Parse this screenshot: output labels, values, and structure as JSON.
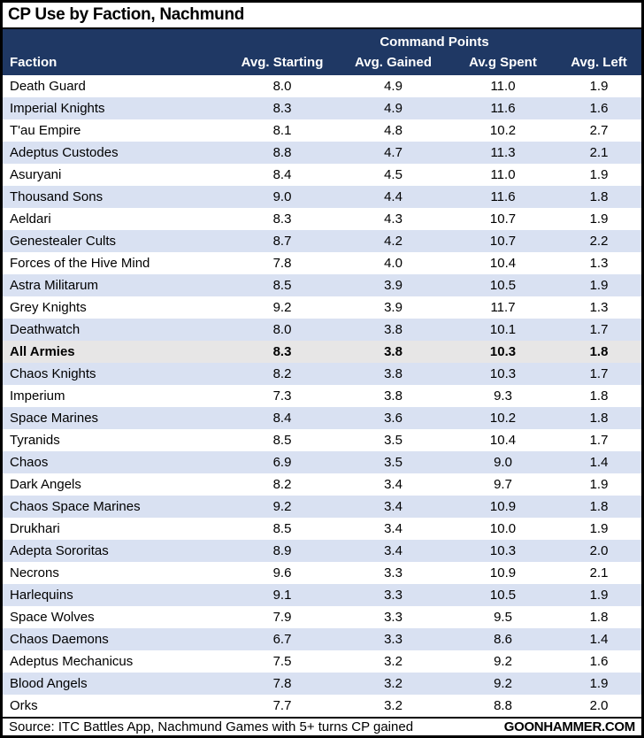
{
  "title": "CP Use by Faction, Nachmund",
  "chart_data": {
    "type": "table",
    "title": "CP Use by Faction, Nachmund",
    "group_header": "Command Points",
    "columns": [
      "Faction",
      "Avg. Starting",
      "Avg. Gained",
      "Av.g Spent",
      "Avg. Left"
    ],
    "rows": [
      {
        "faction": "Death Guard",
        "values": [
          "8.0",
          "4.9",
          "11.0",
          "1.9"
        ]
      },
      {
        "faction": "Imperial Knights",
        "values": [
          "8.3",
          "4.9",
          "11.6",
          "1.6"
        ]
      },
      {
        "faction": "T'au Empire",
        "values": [
          "8.1",
          "4.8",
          "10.2",
          "2.7"
        ]
      },
      {
        "faction": "Adeptus Custodes",
        "values": [
          "8.8",
          "4.7",
          "11.3",
          "2.1"
        ]
      },
      {
        "faction": "Asuryani",
        "values": [
          "8.4",
          "4.5",
          "11.0",
          "1.9"
        ]
      },
      {
        "faction": "Thousand Sons",
        "values": [
          "9.0",
          "4.4",
          "11.6",
          "1.8"
        ]
      },
      {
        "faction": "Aeldari",
        "values": [
          "8.3",
          "4.3",
          "10.7",
          "1.9"
        ]
      },
      {
        "faction": "Genestealer Cults",
        "values": [
          "8.7",
          "4.2",
          "10.7",
          "2.2"
        ]
      },
      {
        "faction": "Forces of the Hive Mind",
        "values": [
          "7.8",
          "4.0",
          "10.4",
          "1.3"
        ]
      },
      {
        "faction": "Astra Militarum",
        "values": [
          "8.5",
          "3.9",
          "10.5",
          "1.9"
        ]
      },
      {
        "faction": "Grey Knights",
        "values": [
          "9.2",
          "3.9",
          "11.7",
          "1.3"
        ]
      },
      {
        "faction": "Deathwatch",
        "values": [
          "8.0",
          "3.8",
          "10.1",
          "1.7"
        ]
      },
      {
        "faction": "All Armies",
        "values": [
          "8.3",
          "3.8",
          "10.3",
          "1.8"
        ],
        "emphasis": true
      },
      {
        "faction": "Chaos Knights",
        "values": [
          "8.2",
          "3.8",
          "10.3",
          "1.7"
        ]
      },
      {
        "faction": "Imperium",
        "values": [
          "7.3",
          "3.8",
          "9.3",
          "1.8"
        ]
      },
      {
        "faction": "Space Marines",
        "values": [
          "8.4",
          "3.6",
          "10.2",
          "1.8"
        ]
      },
      {
        "faction": "Tyranids",
        "values": [
          "8.5",
          "3.5",
          "10.4",
          "1.7"
        ]
      },
      {
        "faction": "Chaos",
        "values": [
          "6.9",
          "3.5",
          "9.0",
          "1.4"
        ]
      },
      {
        "faction": "Dark Angels",
        "values": [
          "8.2",
          "3.4",
          "9.7",
          "1.9"
        ]
      },
      {
        "faction": "Chaos Space Marines",
        "values": [
          "9.2",
          "3.4",
          "10.9",
          "1.8"
        ]
      },
      {
        "faction": "Drukhari",
        "values": [
          "8.5",
          "3.4",
          "10.0",
          "1.9"
        ]
      },
      {
        "faction": "Adepta Sororitas",
        "values": [
          "8.9",
          "3.4",
          "10.3",
          "2.0"
        ]
      },
      {
        "faction": "Necrons",
        "values": [
          "9.6",
          "3.3",
          "10.9",
          "2.1"
        ]
      },
      {
        "faction": "Harlequins",
        "values": [
          "9.1",
          "3.3",
          "10.5",
          "1.9"
        ]
      },
      {
        "faction": "Space Wolves",
        "values": [
          "7.9",
          "3.3",
          "9.5",
          "1.8"
        ]
      },
      {
        "faction": "Chaos Daemons",
        "values": [
          "6.7",
          "3.3",
          "8.6",
          "1.4"
        ]
      },
      {
        "faction": "Adeptus Mechanicus",
        "values": [
          "7.5",
          "3.2",
          "9.2",
          "1.6"
        ]
      },
      {
        "faction": "Blood Angels",
        "values": [
          "7.8",
          "3.2",
          "9.2",
          "1.9"
        ]
      },
      {
        "faction": "Orks",
        "values": [
          "7.7",
          "3.2",
          "8.8",
          "2.0"
        ]
      }
    ]
  },
  "footer": {
    "source": "Source: ITC Battles App, Nachmund Games with 5+ turns CP gained",
    "brand": "GOONHAMMER.COM"
  },
  "colors": {
    "header_bg": "#1F3864",
    "stripe_bg": "#D9E1F2",
    "highlight_bg": "#E7E6E6"
  }
}
